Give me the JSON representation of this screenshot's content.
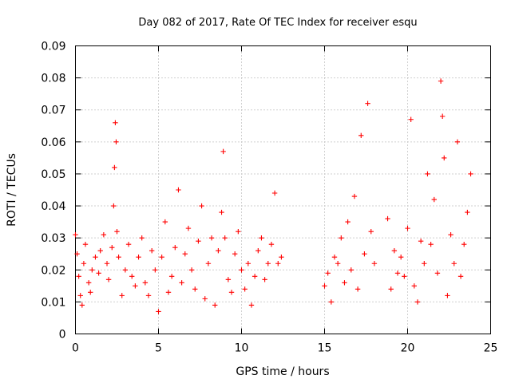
{
  "chart_data": {
    "type": "scatter",
    "title": "Day 082 of 2017, Rate Of TEC Index for receiver esqu",
    "xlabel": "GPS time / hours",
    "ylabel": "ROTI / TECUs",
    "xlim": [
      0,
      25
    ],
    "ylim": [
      0,
      0.09
    ],
    "grid": true,
    "marker": "plus",
    "color": "#ff0000",
    "x_ticks": [
      0,
      5,
      10,
      15,
      20,
      25
    ],
    "x_tick_labels": [
      "0",
      "5",
      "10",
      "15",
      "20",
      "25"
    ],
    "y_ticks": [
      0,
      0.01,
      0.02,
      0.03,
      0.04,
      0.05,
      0.06,
      0.07,
      0.08,
      0.09
    ],
    "y_tick_labels": [
      "0",
      "0.01",
      "0.02",
      "0.03",
      "0.04",
      "0.05",
      "0.06",
      "0.07",
      "0.08",
      "0.09"
    ],
    "series": [
      {
        "name": "ROTI",
        "x": [
          0.0,
          0.1,
          0.2,
          0.3,
          0.4,
          0.5,
          0.6,
          0.8,
          0.9,
          1.0,
          1.2,
          1.4,
          1.5,
          1.7,
          1.9,
          2.0,
          2.2,
          2.3,
          2.35,
          2.4,
          2.45,
          2.5,
          2.6,
          2.8,
          3.0,
          3.2,
          3.4,
          3.6,
          3.8,
          4.0,
          4.2,
          4.4,
          4.6,
          4.8,
          5.0,
          5.2,
          5.4,
          5.6,
          5.8,
          6.0,
          6.2,
          6.4,
          6.6,
          6.8,
          7.0,
          7.2,
          7.4,
          7.6,
          7.8,
          8.0,
          8.2,
          8.4,
          8.6,
          8.8,
          8.9,
          9.0,
          9.2,
          9.4,
          9.6,
          9.8,
          10.0,
          10.2,
          10.4,
          10.6,
          10.8,
          11.0,
          11.2,
          11.4,
          11.6,
          11.8,
          12.0,
          12.2,
          12.4,
          15.0,
          15.2,
          15.4,
          15.6,
          15.8,
          16.0,
          16.2,
          16.4,
          16.6,
          16.8,
          17.0,
          17.2,
          17.4,
          17.6,
          17.8,
          18.0,
          18.8,
          19.0,
          19.2,
          19.4,
          19.6,
          19.8,
          20.0,
          20.2,
          20.4,
          20.6,
          20.8,
          21.0,
          21.2,
          21.4,
          21.6,
          21.8,
          22.0,
          22.1,
          22.2,
          22.4,
          22.6,
          22.8,
          23.0,
          23.2,
          23.4,
          23.6,
          23.8
        ],
        "y": [
          0.031,
          0.025,
          0.018,
          0.012,
          0.009,
          0.022,
          0.028,
          0.016,
          0.013,
          0.02,
          0.024,
          0.019,
          0.026,
          0.031,
          0.022,
          0.017,
          0.027,
          0.04,
          0.052,
          0.066,
          0.06,
          0.032,
          0.024,
          0.012,
          0.02,
          0.028,
          0.018,
          0.015,
          0.024,
          0.03,
          0.016,
          0.012,
          0.026,
          0.02,
          0.007,
          0.024,
          0.035,
          0.013,
          0.018,
          0.027,
          0.045,
          0.016,
          0.025,
          0.033,
          0.02,
          0.014,
          0.029,
          0.04,
          0.011,
          0.022,
          0.03,
          0.009,
          0.026,
          0.038,
          0.057,
          0.03,
          0.017,
          0.013,
          0.025,
          0.032,
          0.02,
          0.014,
          0.022,
          0.009,
          0.018,
          0.026,
          0.03,
          0.017,
          0.022,
          0.028,
          0.044,
          0.022,
          0.024,
          0.015,
          0.019,
          0.01,
          0.024,
          0.022,
          0.03,
          0.016,
          0.035,
          0.02,
          0.043,
          0.014,
          0.062,
          0.025,
          0.072,
          0.032,
          0.022,
          0.036,
          0.014,
          0.026,
          0.019,
          0.024,
          0.018,
          0.033,
          0.067,
          0.015,
          0.01,
          0.029,
          0.022,
          0.05,
          0.028,
          0.042,
          0.019,
          0.079,
          0.068,
          0.055,
          0.012,
          0.031,
          0.022,
          0.06,
          0.018,
          0.028,
          0.038,
          0.05
        ]
      }
    ]
  }
}
